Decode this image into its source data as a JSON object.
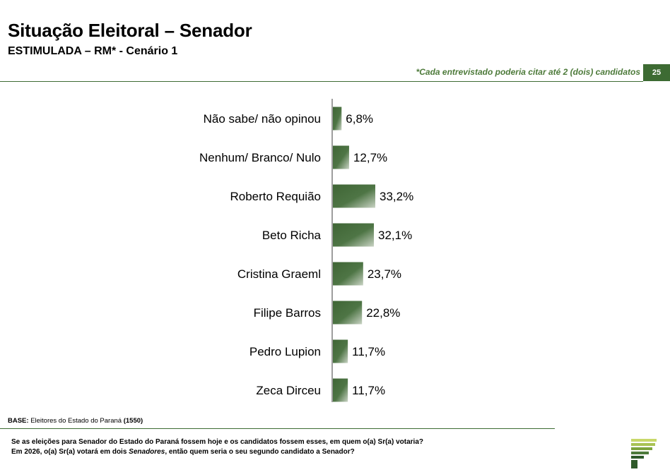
{
  "header": {
    "title": "Situação Eleitoral – Senador",
    "subtitle": "ESTIMULADA – RM* - Cenário 1",
    "note": "*Cada entrevistado poderia citar até 2 (dois) candidatos",
    "page_number": "25"
  },
  "chart_data": {
    "type": "bar",
    "orientation": "horizontal",
    "categories": [
      "Não sabe/ não opinou",
      "Nenhum/ Branco/ Nulo",
      "Roberto Requião",
      "Beto Richa",
      "Cristina Graeml",
      "Filipe Barros",
      "Pedro Lupion",
      "Zeca Dirceu"
    ],
    "values": [
      6.8,
      12.7,
      33.2,
      32.1,
      23.7,
      22.8,
      11.7,
      11.7
    ],
    "value_labels": [
      "6,8%",
      "12,7%",
      "33,2%",
      "32,1%",
      "23,7%",
      "22,8%",
      "11,7%",
      "11,7%"
    ],
    "unit": "%",
    "xlim": [
      0,
      100
    ],
    "grid": false,
    "legend": "none",
    "bar_color": "#4a7040"
  },
  "footer": {
    "base_label": "BASE:",
    "base_text": " Eleitores do Estado do Paraná ",
    "base_count": "(1550)",
    "question_line1": "Se as eleições para Senador do Estado do Paraná fossem hoje e os candidatos fossem esses, em quem o(a) Sr(a) votaria?",
    "question_line2_pre": "Em 2026, o(a) Sr(a) votará em dois ",
    "question_line2_em": "Senadores",
    "question_line2_post": ", então quem seria o seu segundo candidato a Senador?"
  },
  "logo": {
    "icon": "stacked-bars-logo-icon",
    "colors": [
      "#c8d86a",
      "#a9c254",
      "#7da43e",
      "#4d7a3a",
      "#2f5a2a"
    ]
  }
}
